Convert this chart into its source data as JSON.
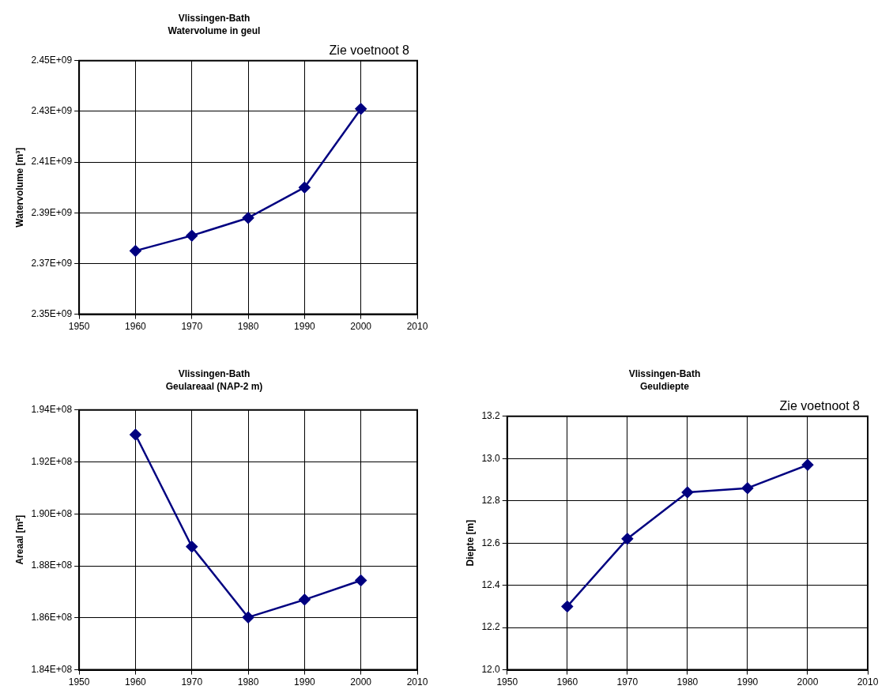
{
  "chart_data": [
    {
      "type": "line",
      "title": "Vlissingen-Bath",
      "subtitle": "Watervolume in geul",
      "ylabel": "Watervolume [m³]",
      "annotations": [
        "Zie voetnoot 8"
      ],
      "x": [
        1960,
        1970,
        1980,
        1990,
        2000
      ],
      "series": [
        {
          "color": "#000080",
          "values": [
            2375000000.0,
            2381000000.0,
            2388000000.0,
            2400000000.0,
            2431000000.0
          ]
        }
      ],
      "xlim": [
        1950,
        2010
      ],
      "xticks": [
        1950,
        1960,
        1970,
        1980,
        1990,
        2000,
        2010
      ],
      "ylim": [
        2350000000.0,
        2450000000.0
      ],
      "yticks": [
        {
          "value": 2350000000.0,
          "label": "2.35E+09"
        },
        {
          "value": 2370000000.0,
          "label": "2.37E+09"
        },
        {
          "value": 2390000000.0,
          "label": "2.39E+09"
        },
        {
          "value": 2410000000.0,
          "label": "2.41E+09"
        },
        {
          "value": 2430000000.0,
          "label": "2.43E+09"
        },
        {
          "value": 2450000000.0,
          "label": "2.45E+09"
        }
      ],
      "grid": true,
      "marker": "diamond"
    },
    {
      "type": "line",
      "title": "Vlissingen-Bath",
      "subtitle": "Geulareaal (NAP-2 m)",
      "ylabel": "Areaal [m²]",
      "x": [
        1960,
        1970,
        1980,
        1990,
        2000
      ],
      "series": [
        {
          "color": "#000080",
          "values": [
            193050000.0,
            188740000.0,
            186020000.0,
            186700000.0,
            187440000.0
          ]
        }
      ],
      "xlim": [
        1950,
        2010
      ],
      "xticks": [
        1950,
        1960,
        1970,
        1980,
        1990,
        2000,
        2010
      ],
      "ylim": [
        184000000.0,
        194000000.0
      ],
      "yticks": [
        {
          "value": 184000000.0,
          "label": "1.84E+08"
        },
        {
          "value": 186000000.0,
          "label": "1.86E+08"
        },
        {
          "value": 188000000.0,
          "label": "1.88E+08"
        },
        {
          "value": 190000000.0,
          "label": "1.90E+08"
        },
        {
          "value": 192000000.0,
          "label": "1.92E+08"
        },
        {
          "value": 194000000.0,
          "label": "1.94E+08"
        }
      ],
      "grid": true,
      "marker": "diamond"
    },
    {
      "type": "line",
      "title": "Vlissingen-Bath",
      "subtitle": "Geuldiepte",
      "ylabel": "Diepte [m]",
      "annotations": [
        "Zie voetnoot 8"
      ],
      "x": [
        1960,
        1970,
        1980,
        1990,
        2000
      ],
      "series": [
        {
          "color": "#000080",
          "values": [
            12.3,
            12.62,
            12.84,
            12.86,
            12.97
          ]
        }
      ],
      "xlim": [
        1950,
        2010
      ],
      "xticks": [
        1950,
        1960,
        1970,
        1980,
        1990,
        2000,
        2010
      ],
      "ylim": [
        12.0,
        13.2
      ],
      "yticks": [
        {
          "value": 12.0,
          "label": "12.0"
        },
        {
          "value": 12.2,
          "label": "12.2"
        },
        {
          "value": 12.4,
          "label": "12.4"
        },
        {
          "value": 12.6,
          "label": "12.6"
        },
        {
          "value": 12.8,
          "label": "12.8"
        },
        {
          "value": 13.0,
          "label": "13.0"
        },
        {
          "value": 13.2,
          "label": "13.2"
        }
      ],
      "grid": true,
      "marker": "diamond"
    }
  ]
}
